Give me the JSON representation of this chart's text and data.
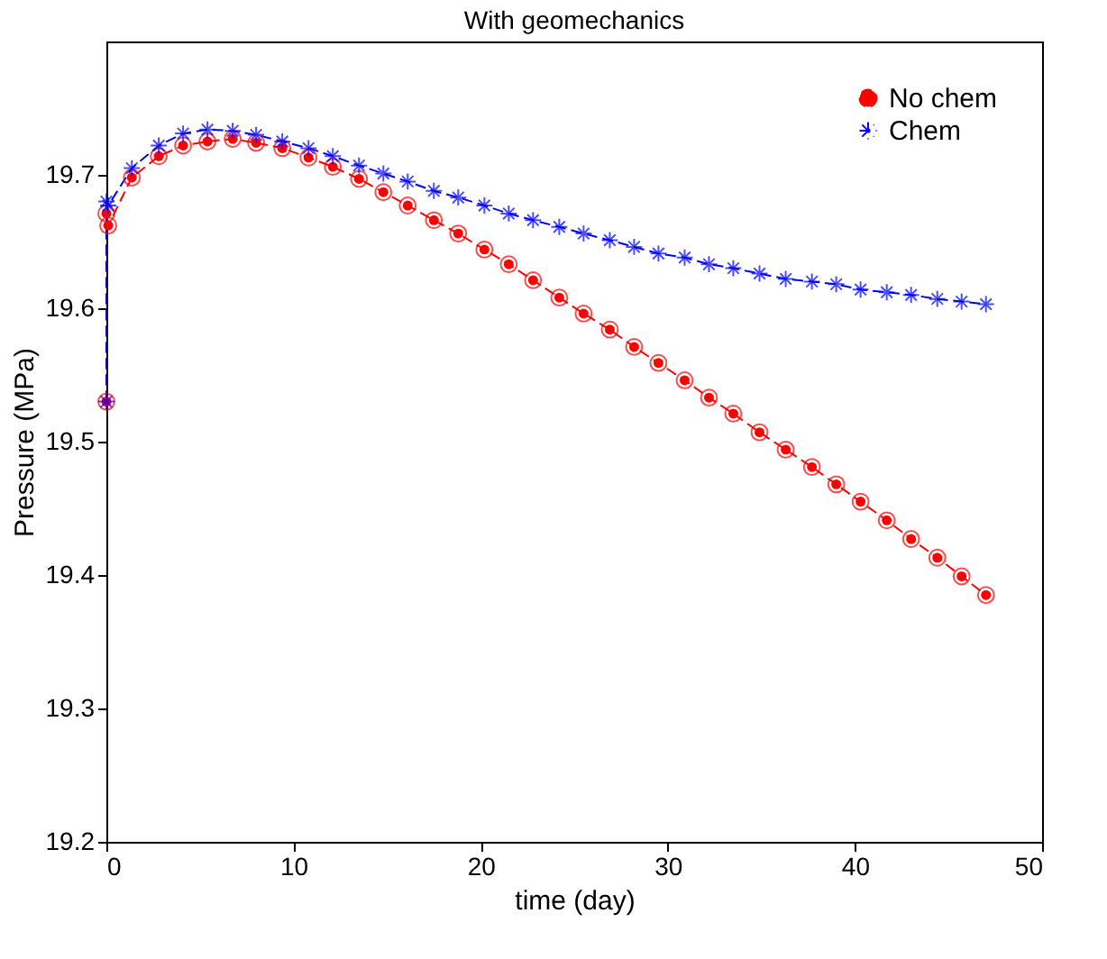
{
  "chart_data": {
    "type": "line",
    "title": "With geomechanics",
    "xlabel": "time (day)",
    "ylabel": "Pressure (MPa)",
    "xlim": [
      0,
      50
    ],
    "xticks": [
      0,
      10,
      20,
      30,
      40,
      50
    ],
    "ylim": [
      19.2,
      19.8
    ],
    "yticks": [
      19.2,
      19.3,
      19.4,
      19.5,
      19.6,
      19.7
    ],
    "grid": false,
    "legend": "top right",
    "series": [
      {
        "name": "No chem",
        "color": "#ff0000",
        "marker": "circle",
        "line_style": "dashed",
        "x": [
          0,
          0,
          0.1,
          1.36,
          2.8,
          4.1,
          5.4,
          6.75,
          8.0,
          9.4,
          10.8,
          12.1,
          13.5,
          14.8,
          16.1,
          17.5,
          18.8,
          20.2,
          21.5,
          22.8,
          24.2,
          25.5,
          26.9,
          28.2,
          29.5,
          30.9,
          32.2,
          33.5,
          34.9,
          36.3,
          37.7,
          39.0,
          40.3,
          41.7,
          43.0,
          44.4,
          45.7,
          47.0
        ],
        "values": [
          19.53,
          19.671,
          19.662,
          19.698,
          19.714,
          19.722,
          19.725,
          19.727,
          19.724,
          19.72,
          19.713,
          19.706,
          19.697,
          19.687,
          19.677,
          19.666,
          19.656,
          19.644,
          19.633,
          19.621,
          19.608,
          19.596,
          19.584,
          19.571,
          19.559,
          19.546,
          19.533,
          19.521,
          19.507,
          19.494,
          19.481,
          19.468,
          19.455,
          19.441,
          19.427,
          19.413,
          19.399,
          19.385
        ]
      },
      {
        "name": "Chem",
        "color": "#0000ff",
        "marker": "cross",
        "line_style": "dashed",
        "x": [
          0,
          0,
          0.1,
          1.36,
          2.8,
          4.1,
          5.4,
          6.75,
          8.0,
          9.4,
          10.8,
          12.1,
          13.5,
          14.8,
          16.1,
          17.5,
          18.8,
          20.2,
          21.5,
          22.8,
          24.2,
          25.5,
          26.9,
          28.2,
          29.5,
          30.9,
          32.2,
          33.5,
          34.9,
          36.3,
          37.7,
          39.0,
          40.3,
          41.7,
          43.0,
          44.4,
          45.7,
          47.0
        ],
        "values": [
          19.53,
          19.68,
          19.677,
          19.705,
          19.722,
          19.731,
          19.734,
          19.733,
          19.73,
          19.725,
          19.72,
          19.714,
          19.707,
          19.701,
          19.695,
          19.688,
          19.683,
          19.677,
          19.671,
          19.666,
          19.661,
          19.656,
          19.651,
          19.646,
          19.641,
          19.638,
          19.633,
          19.63,
          19.626,
          19.622,
          19.62,
          19.618,
          19.614,
          19.612,
          19.61,
          19.607,
          19.605,
          19.603
        ]
      }
    ]
  }
}
